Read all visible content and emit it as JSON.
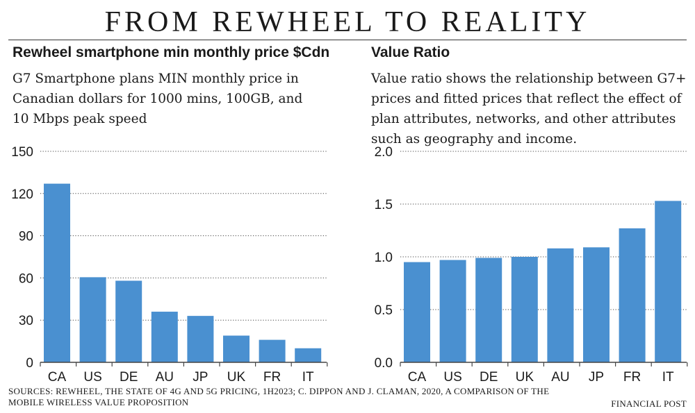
{
  "title": "FROM REWHEEL TO REALITY",
  "sources": "SOURCES: REWHEEL, THE STATE OF 4G AND 5G PRICING, 1H2023; C. DIPPON AND J. CLAMAN, 2020, A COMPARISON OF THE MOBILE WIRELESS VALUE PROPOSITION",
  "credit": "FINANCIAL POST",
  "colors": {
    "bar": "#4a90d0",
    "grid": "#444444",
    "text": "#1a1a1a"
  },
  "chart_data": [
    {
      "type": "bar",
      "title": "Rewheel smartphone min monthly price $Cdn",
      "subtitle": "G7 Smartphone plans MIN monthly price in Canadian dollars for 1000 mins, 100GB, and 10 Mbps peak speed",
      "xlabel": "",
      "ylabel": "",
      "categories": [
        "CA",
        "US",
        "DE",
        "AU",
        "JP",
        "UK",
        "FR",
        "IT"
      ],
      "values": [
        127,
        60.5,
        58,
        36,
        33,
        19,
        16,
        10
      ],
      "ylim": [
        0,
        150
      ],
      "yticks": [
        0,
        30,
        60,
        90,
        120,
        150
      ],
      "ytick_labels": [
        "0",
        "30",
        "60",
        "90",
        "120",
        "150"
      ],
      "grid": true
    },
    {
      "type": "bar",
      "title": "Value Ratio",
      "subtitle": "Value ratio shows the relationship between G7+ prices and fitted prices that reflect the effect of plan attributes, networks, and other attributes such as geography and income.",
      "xlabel": "",
      "ylabel": "",
      "categories": [
        "CA",
        "US",
        "DE",
        "UK",
        "AU",
        "JP",
        "FR",
        "IT"
      ],
      "values": [
        0.95,
        0.97,
        0.99,
        1.0,
        1.08,
        1.09,
        1.27,
        1.53
      ],
      "ylim": [
        0,
        2.0
      ],
      "yticks": [
        0,
        0.5,
        1.0,
        1.5,
        2.0
      ],
      "ytick_labels": [
        "0.0",
        "0.5",
        "1.0",
        "1.5",
        "2.0"
      ],
      "grid": true
    }
  ]
}
